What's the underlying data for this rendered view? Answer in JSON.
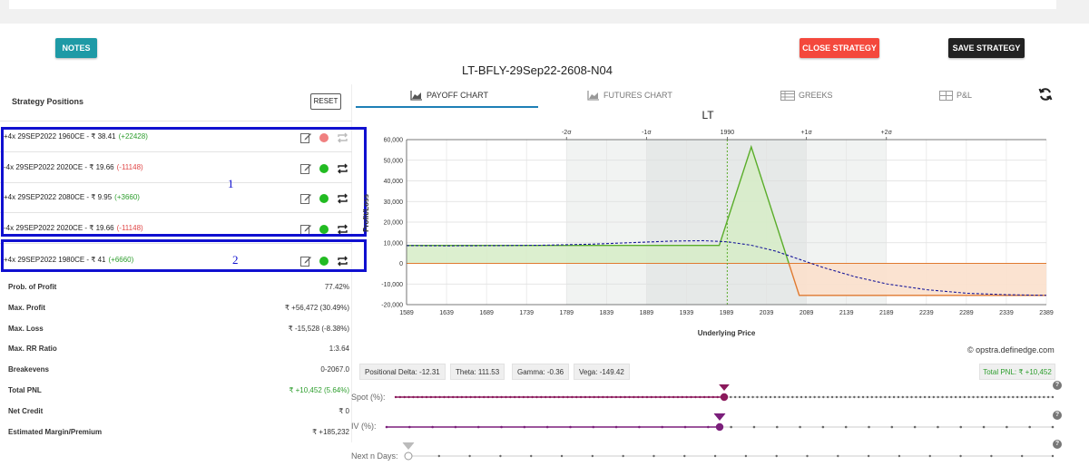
{
  "header": {
    "notes_label": "NOTES",
    "close_label": "CLOSE STRATEGY",
    "save_label": "SAVE STRATEGY",
    "strategy_name": "LT-BFLY-29Sep22-2608-N04"
  },
  "positions_panel": {
    "title": "Strategy Positions",
    "reset_label": "RESET",
    "rows": [
      {
        "text": "+4x  29SEP2022  1960CE  - ₹ 38.41",
        "pnl": "(+22428)",
        "pnl_sign": "pos",
        "status_color": "#f08080"
      },
      {
        "text": "-4x  29SEP2022  2020CE  - ₹ 19.66",
        "pnl": "(-11148)",
        "pnl_sign": "neg",
        "status_color": "#22bb22"
      },
      {
        "text": "+4x  29SEP2022  2080CE  - ₹ 9.95",
        "pnl": "(+3660)",
        "pnl_sign": "pos",
        "status_color": "#22bb22"
      },
      {
        "text": "-4x  29SEP2022  2020CE  - ₹ 19.66",
        "pnl": "(-11148)",
        "pnl_sign": "neg",
        "status_color": "#22bb22"
      },
      {
        "text": "+4x  29SEP2022  1980CE  - ₹ 41",
        "pnl": "(+6660)",
        "pnl_sign": "pos",
        "status_color": "#22bb22"
      }
    ],
    "annotations": [
      "1",
      "2"
    ],
    "annotation_color": "#1010d0",
    "stats": [
      {
        "label": "Prob. of Profit",
        "value": "77.42%"
      },
      {
        "label": "Max. Profit",
        "value": "₹ +56,472 (30.49%)"
      },
      {
        "label": "Max. Loss",
        "value": "₹ -15,528 (-8.38%)"
      },
      {
        "label": "Max. RR Ratio",
        "value": "1:3.64"
      },
      {
        "label": "Breakevens",
        "value": "0-2067.0"
      },
      {
        "label": "Total PNL",
        "value": "₹ +10,452 (5.64%)"
      },
      {
        "label": "Net Credit",
        "value": "₹ 0"
      },
      {
        "label": "Estimated Margin/Premium",
        "value": "₹ +185,232"
      }
    ]
  },
  "tabs": [
    {
      "label": "PAYOFF CHART",
      "active": true,
      "icon": "area-chart-icon"
    },
    {
      "label": "FUTURES CHART",
      "active": false,
      "icon": "area-chart-icon"
    },
    {
      "label": "GREEKS",
      "active": false,
      "icon": "table-icon"
    },
    {
      "label": "P&L",
      "active": false,
      "icon": "grid-icon"
    }
  ],
  "chart_data": {
    "type": "line",
    "title": "LT",
    "xlabel": "Underlying Price",
    "ylabel": "Profit/Loss",
    "xlim": [
      1589,
      2389
    ],
    "ylim": [
      -20000,
      60000
    ],
    "x_ticks": [
      1589,
      1639,
      1689,
      1739,
      1789,
      1839,
      1889,
      1939,
      1989,
      2039,
      2089,
      2139,
      2189,
      2239,
      2289,
      2339,
      2389
    ],
    "y_ticks": [
      -20000,
      -10000,
      0,
      10000,
      20000,
      30000,
      40000,
      50000,
      60000
    ],
    "y_tick_labels": [
      "-20,000",
      "-10,000",
      "0",
      "10,000",
      "20,000",
      "30,000",
      "40,000",
      "50,000",
      "60,000"
    ],
    "sigma_labels": [
      "-2σ",
      "-1σ",
      "1990",
      "+1σ",
      "+2σ"
    ],
    "sigma_values": [
      1789,
      1889,
      1990,
      2089,
      2189
    ],
    "spot": 1990,
    "series": [
      {
        "style": "expiry",
        "color": "#5aad2a",
        "x": [
          1589,
          1980,
          2020,
          2067,
          2080,
          2389
        ],
        "y": [
          8700,
          8700,
          56472,
          0,
          -15528,
          -15528
        ]
      },
      {
        "style": "current",
        "color": "#1a1a9a",
        "x": [
          1589,
          1640,
          1700,
          1760,
          1820,
          1880,
          1920,
          1960,
          1990,
          2020,
          2050,
          2080,
          2110,
          2150,
          2190,
          2240,
          2290,
          2340,
          2389
        ],
        "y": [
          8600,
          8500,
          8600,
          8800,
          9300,
          10200,
          10800,
          11000,
          10452,
          8800,
          6000,
          2000,
          -2000,
          -6500,
          -10000,
          -12800,
          -14500,
          -15200,
          -15500
        ]
      }
    ],
    "grid": true,
    "colors": {
      "profit_fill": "#d6ecc7",
      "loss_fill": "#fbe0cc",
      "loss_line": "#e07a30",
      "band_inner": "#e6e9e8",
      "band_outer": "#f1f3f2"
    }
  },
  "credit": "© opstra.definedge.com",
  "greeks": [
    {
      "label": "Positional Delta: -12.31"
    },
    {
      "label": "Theta: 111.53"
    },
    {
      "label": "Gamma: -0.36"
    },
    {
      "label": "Vega: -149.42"
    }
  ],
  "total_pnl_badge": "Total PNL: ₹ +10,452",
  "sliders": [
    {
      "label": "Spot (%):",
      "value": "0",
      "level": 0.5,
      "color": "#8b1a5c"
    },
    {
      "label": "IV (%):",
      "value": "0",
      "level": 0.5,
      "color": "#7b1f7b"
    },
    {
      "label": "Next n Days:",
      "value": "0",
      "level": 0.0,
      "color": "#bbbbbb"
    }
  ],
  "help_glyph": "?"
}
